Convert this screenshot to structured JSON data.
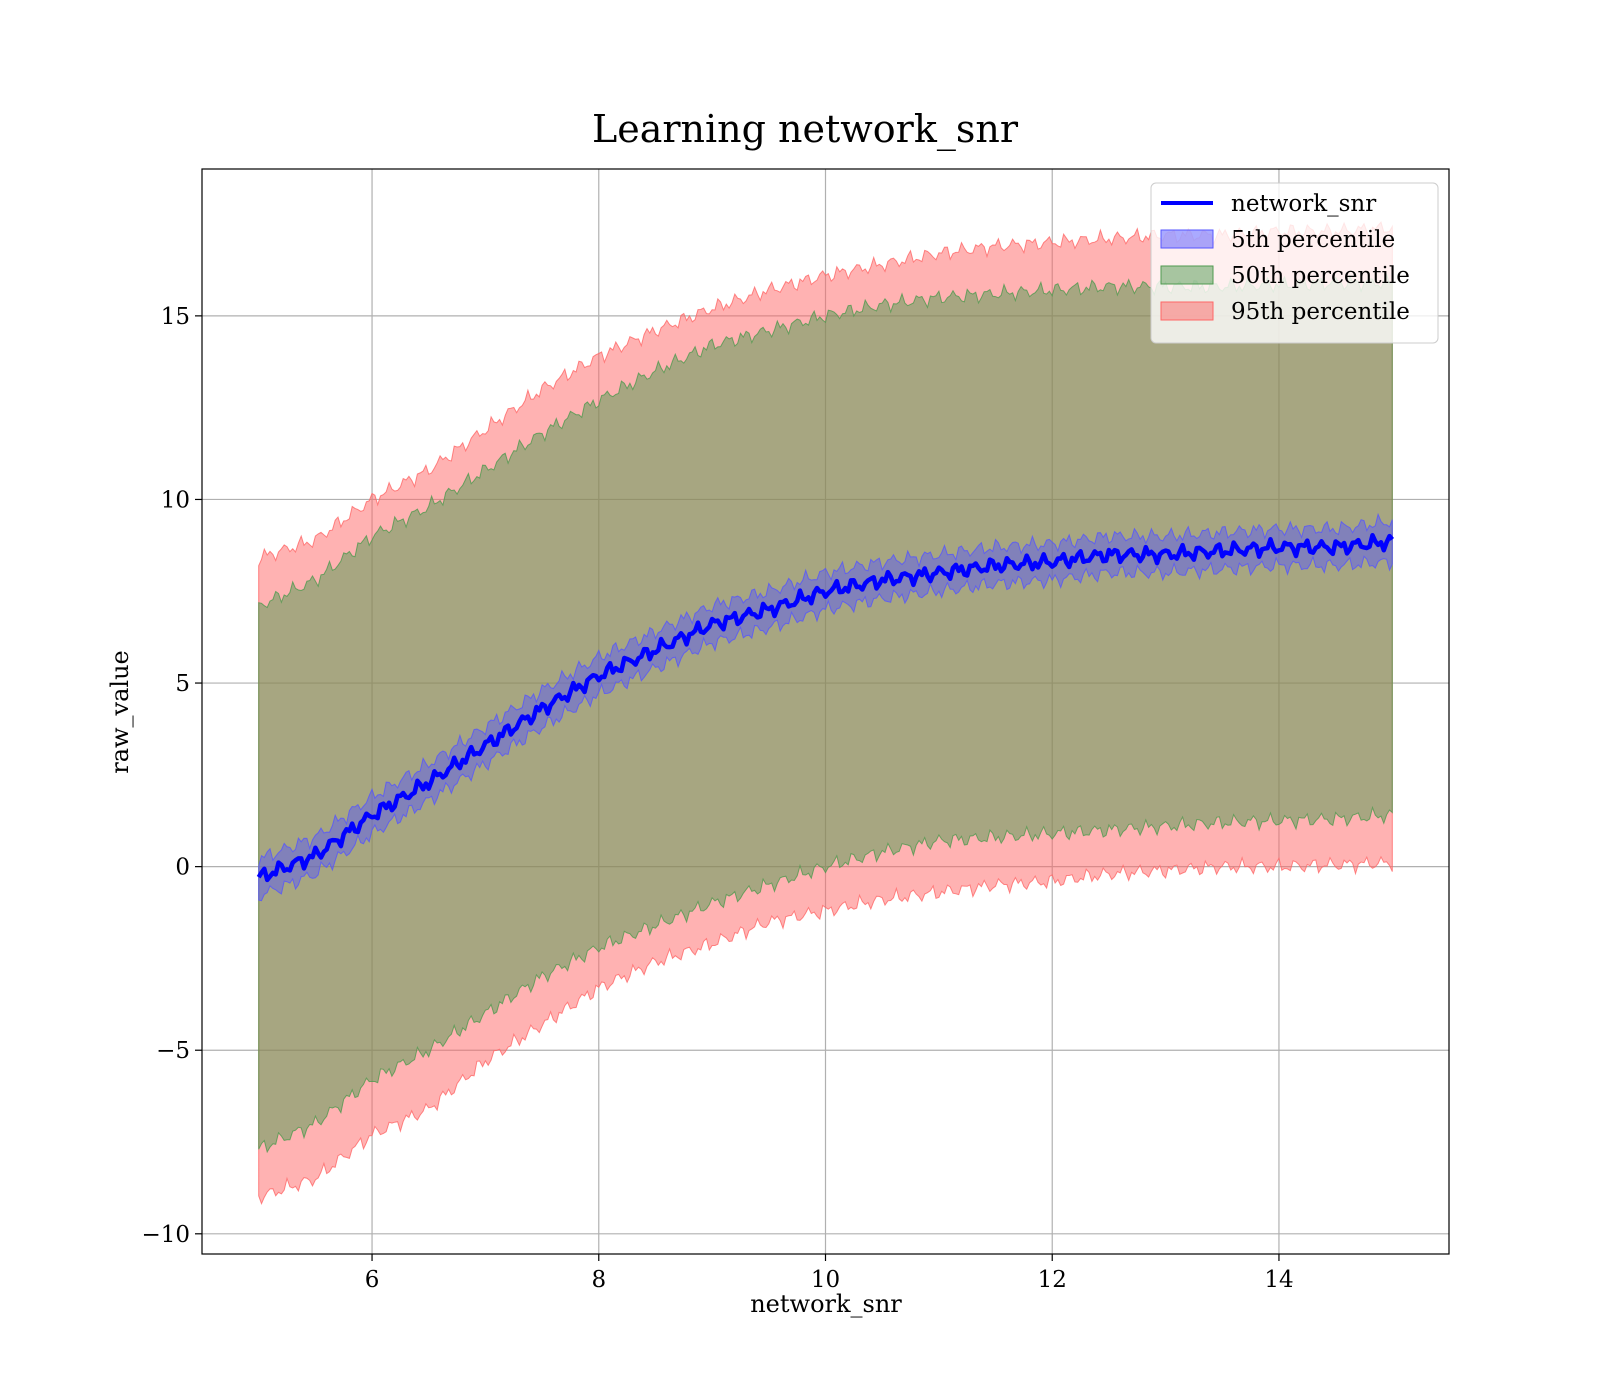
{
  "chart_data": {
    "type": "area",
    "title": "Learning network_snr",
    "xlabel": "network_snr",
    "ylabel": "raw_value",
    "xlim": [
      4.5,
      15.5
    ],
    "ylim": [
      -10.55,
      19.0
    ],
    "xticks": [
      6,
      8,
      10,
      12,
      14
    ],
    "yticks": [
      -10,
      -5,
      0,
      5,
      10,
      15
    ],
    "xtick_labels": [
      "6",
      "8",
      "10",
      "12",
      "14"
    ],
    "ytick_labels": [
      "−10",
      "−5",
      "0",
      "5",
      "10",
      "15"
    ],
    "grid": true,
    "legend_position": "top-right",
    "x": [
      5.0,
      5.5,
      6.0,
      6.5,
      7.0,
      7.5,
      8.0,
      8.5,
      9.0,
      9.5,
      10.0,
      10.5,
      11.0,
      11.5,
      12.0,
      12.5,
      13.0,
      13.5,
      14.0,
      14.5,
      15.0
    ],
    "series": [
      {
        "name": "network_snr",
        "kind": "line",
        "color": "#0000ff",
        "values": [
          -0.3,
          0.3,
          1.4,
          2.3,
          3.3,
          4.3,
          5.2,
          5.9,
          6.6,
          7.0,
          7.5,
          7.8,
          8.0,
          8.2,
          8.3,
          8.5,
          8.5,
          8.6,
          8.7,
          8.7,
          8.85
        ]
      },
      {
        "name": "5th percentile",
        "kind": "band",
        "color": "#5555ff",
        "lower": [
          -0.8,
          -0.2,
          0.9,
          1.8,
          2.8,
          3.8,
          4.7,
          5.4,
          6.1,
          6.5,
          7.0,
          7.3,
          7.5,
          7.7,
          7.8,
          8.0,
          8.0,
          8.1,
          8.2,
          8.2,
          8.3
        ],
        "upper": [
          0.2,
          0.8,
          1.9,
          2.8,
          3.8,
          4.8,
          5.7,
          6.4,
          7.1,
          7.5,
          8.0,
          8.3,
          8.5,
          8.7,
          8.8,
          9.0,
          9.0,
          9.1,
          9.2,
          9.2,
          9.4
        ]
      },
      {
        "name": "50th percentile",
        "kind": "band",
        "color": "#4f9a4f",
        "lower": [
          -7.7,
          -7.0,
          -5.8,
          -5.0,
          -4.0,
          -3.0,
          -2.2,
          -1.6,
          -1.0,
          -0.5,
          0.0,
          0.4,
          0.7,
          0.8,
          0.9,
          1.0,
          1.1,
          1.2,
          1.25,
          1.3,
          1.4
        ],
        "upper": [
          7.1,
          7.8,
          9.0,
          9.8,
          10.8,
          11.8,
          12.7,
          13.5,
          14.2,
          14.6,
          15.0,
          15.3,
          15.5,
          15.6,
          15.7,
          15.8,
          15.8,
          15.8,
          15.85,
          15.9,
          15.9
        ]
      },
      {
        "name": "95th percentile",
        "kind": "band",
        "color": "#ff6666",
        "lower": [
          -9.0,
          -8.5,
          -7.3,
          -6.6,
          -5.3,
          -4.3,
          -3.3,
          -2.6,
          -2.1,
          -1.5,
          -1.2,
          -0.9,
          -0.7,
          -0.5,
          -0.4,
          -0.2,
          -0.1,
          0.0,
          0.0,
          0.05,
          0.1
        ],
        "upper": [
          8.4,
          8.9,
          10.0,
          10.8,
          11.9,
          13.0,
          13.9,
          14.6,
          15.2,
          15.7,
          16.1,
          16.4,
          16.7,
          16.9,
          17.0,
          17.1,
          17.2,
          17.2,
          17.3,
          17.3,
          17.4
        ]
      }
    ],
    "legend": [
      {
        "label": "network_snr",
        "kind": "line",
        "color": "#0000ff"
      },
      {
        "label": "5th percentile",
        "kind": "patch",
        "color": "#5555ff"
      },
      {
        "label": "50th percentile",
        "kind": "patch",
        "color": "#4f9a4f"
      },
      {
        "label": "95th percentile",
        "kind": "patch",
        "color": "#ff6666"
      }
    ]
  }
}
